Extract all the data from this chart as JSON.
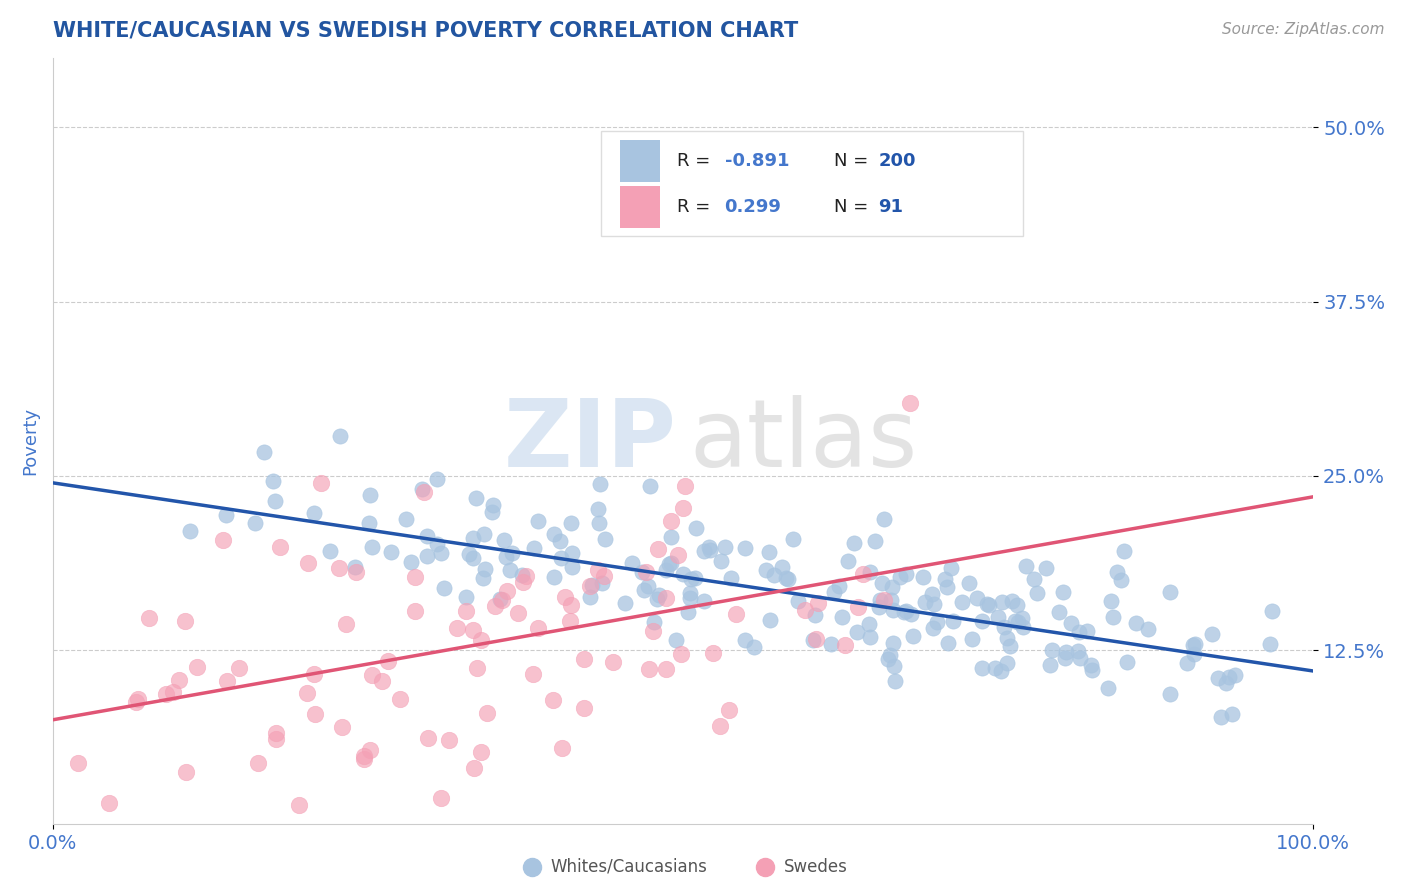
{
  "title": "WHITE/CAUCASIAN VS SWEDISH POVERTY CORRELATION CHART",
  "source_text": "Source: ZipAtlas.com",
  "ylabel": "Poverty",
  "xlim": [
    0,
    1
  ],
  "ylim": [
    0,
    0.55
  ],
  "yticks": [
    0.125,
    0.25,
    0.375,
    0.5
  ],
  "ytick_labels": [
    "12.5%",
    "25.0%",
    "37.5%",
    "50.0%"
  ],
  "xticks": [
    0,
    1
  ],
  "xtick_labels": [
    "0.0%",
    "100.0%"
  ],
  "blue_R": -0.891,
  "blue_N": 200,
  "pink_R": 0.299,
  "pink_N": 91,
  "blue_color": "#a8c4e0",
  "pink_color": "#f4a0b5",
  "blue_line_color": "#2255aa",
  "pink_line_color": "#e05575",
  "title_color": "#2255a0",
  "axis_color": "#4477cc",
  "legend_R_color": "#4477cc",
  "legend_N_color": "#2255aa",
  "watermark_ZIP_color": "#b8cfe8",
  "watermark_atlas_color": "#c8c8c8",
  "legend_blue_label": "Whites/Caucasians",
  "legend_pink_label": "Swedes",
  "blue_intercept": 0.245,
  "blue_slope": -0.135,
  "pink_intercept": 0.075,
  "pink_slope": 0.16,
  "background_color": "#ffffff",
  "grid_color": "#cccccc",
  "source_color": "#999999"
}
